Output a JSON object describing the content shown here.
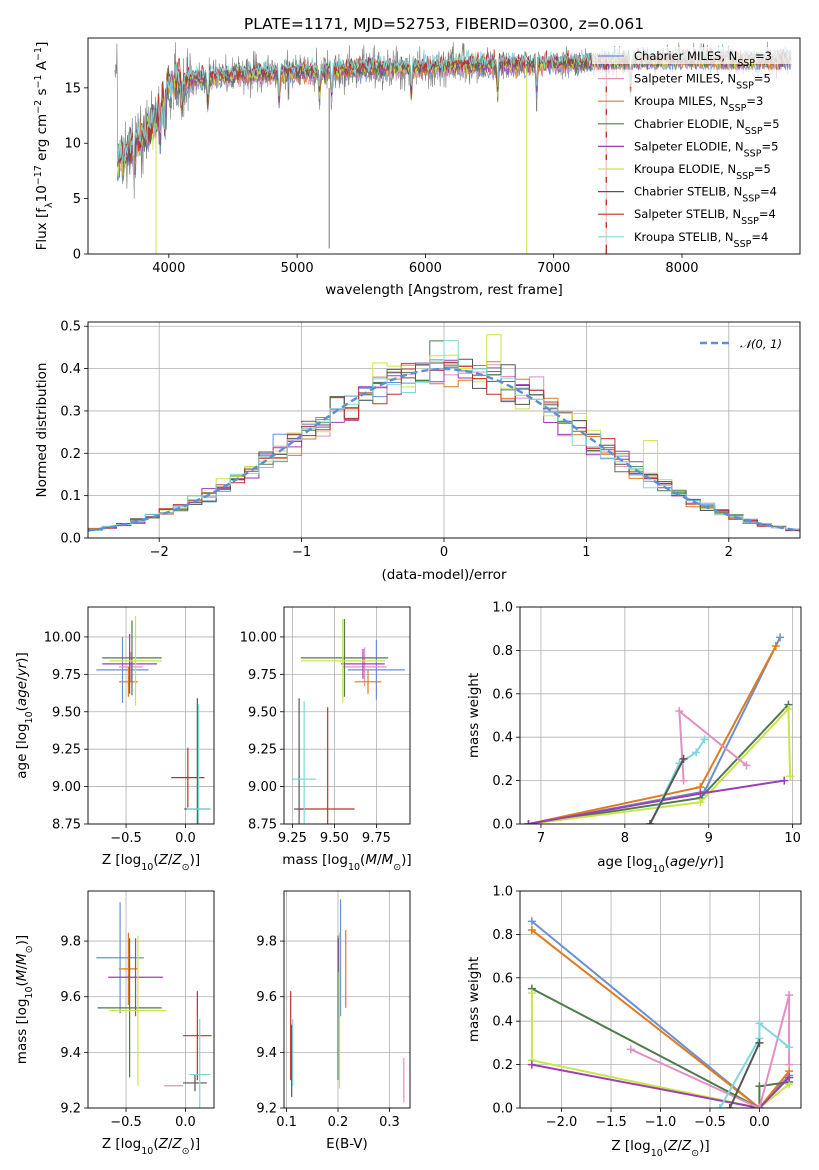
{
  "title": "PLATE=1171, MJD=52753, FIBERID=0300, z=0.061",
  "colors": {
    "chabrier_miles": "#6b8fd6",
    "salpeter_miles": "#e38fc0",
    "kroupa_miles": "#e07a1f",
    "chabrier_elodie": "#4f7a4f",
    "salpeter_elodie": "#9a3fb5",
    "kroupa_elodie": "#c8e64a",
    "chabrier_stelib": "#555555",
    "salpeter_stelib": "#c0302a",
    "kroupa_stelib": "#7fd8dc",
    "normal": "#5b8fd6"
  },
  "chart_data": [
    {
      "type": "line",
      "panel": "spectrum",
      "xlabel": "wavelength [Angstrom, rest frame]",
      "ylabel_parts": [
        "Flux [f",
        "λ",
        "10",
        "−17",
        " erg cm",
        "−2",
        " s",
        "−1",
        " A",
        "−1",
        "]"
      ],
      "xlim": [
        3370,
        8920
      ],
      "ylim": [
        0,
        19.5
      ],
      "xticks": [
        4000,
        5000,
        6000,
        7000,
        8000
      ],
      "yticks": [
        0,
        5,
        10,
        15
      ],
      "legend_position": "right",
      "legend": [
        {
          "key": "chabrier_miles",
          "name": "Chabrier MILES, N",
          "sub": "SSP",
          "val": "=3"
        },
        {
          "key": "salpeter_miles",
          "name": "Salpeter MILES, N",
          "sub": "SSP",
          "val": "=5"
        },
        {
          "key": "kroupa_miles",
          "name": "Kroupa MILES, N",
          "sub": "SSP",
          "val": "=3"
        },
        {
          "key": "chabrier_elodie",
          "name": "Chabrier ELODIE, N",
          "sub": "SSP",
          "val": "=5"
        },
        {
          "key": "salpeter_elodie",
          "name": "Salpeter ELODIE, N",
          "sub": "SSP",
          "val": "=5"
        },
        {
          "key": "kroupa_elodie",
          "name": "Kroupa ELODIE, N",
          "sub": "SSP",
          "val": "=5"
        },
        {
          "key": "chabrier_stelib",
          "name": "Chabrier STELIB, N",
          "sub": "SSP",
          "val": "=4"
        },
        {
          "key": "salpeter_stelib",
          "name": "Salpeter STELIB, N",
          "sub": "SSP",
          "val": "=4"
        },
        {
          "key": "kroupa_stelib",
          "name": "Kroupa STELIB, N",
          "sub": "SSP",
          "val": "=4"
        }
      ],
      "continuum": [
        [
          3600,
          8.5
        ],
        [
          3700,
          9.5
        ],
        [
          3800,
          10.5
        ],
        [
          3900,
          12
        ],
        [
          4000,
          15.2
        ],
        [
          4200,
          15.8
        ],
        [
          4500,
          16.1
        ],
        [
          5000,
          16.4
        ],
        [
          5500,
          16.7
        ],
        [
          6000,
          16.9
        ],
        [
          6500,
          17.1
        ],
        [
          7000,
          17.2
        ],
        [
          7500,
          17.4
        ],
        [
          8000,
          17.6
        ],
        [
          8500,
          17.4
        ],
        [
          8850,
          17.6
        ]
      ]
    },
    {
      "type": "line",
      "panel": "residual-histogram",
      "xlabel": "(data-model)/error",
      "ylabel": "Normed distribution",
      "xlim": [
        -2.5,
        2.5
      ],
      "ylim": [
        0,
        0.51
      ],
      "xticks": [
        -2,
        -1,
        0,
        1,
        2
      ],
      "yticks": [
        0.0,
        0.1,
        0.2,
        0.3,
        0.4,
        0.5
      ],
      "bin_width": 0.1,
      "legend_label": "𝒩(0, 1)",
      "legend_position": "top-right"
    },
    {
      "type": "scatter",
      "panel": "age-vs-Z",
      "xlabel": "Z [log10(Z/Z⊙)]",
      "ylabel": "age  [log10(age/yr)]",
      "xlim": [
        -0.82,
        0.24
      ],
      "ylim": [
        8.75,
        10.2
      ],
      "xticks": [
        -0.5,
        0.0
      ],
      "yticks": [
        8.75,
        9.0,
        9.25,
        9.5,
        9.75,
        10.0
      ],
      "points": [
        {
          "key": "chabrier_miles",
          "x": -0.53,
          "xerr": 0.22,
          "y": 9.78,
          "yerr": 0.22
        },
        {
          "key": "salpeter_miles",
          "x": -0.46,
          "xerr": 0.1,
          "y": 9.8,
          "yerr": 0.1
        },
        {
          "key": "kroupa_miles",
          "x": -0.48,
          "xerr": 0.08,
          "y": 9.7,
          "yerr": 0.1
        },
        {
          "key": "chabrier_elodie",
          "x": -0.45,
          "xerr": 0.25,
          "y": 9.86,
          "yerr": 0.25
        },
        {
          "key": "salpeter_elodie",
          "x": -0.47,
          "xerr": 0.23,
          "y": 9.82,
          "yerr": 0.2
        },
        {
          "key": "kroupa_elodie",
          "x": -0.42,
          "xerr": 0.22,
          "y": 9.84,
          "yerr": 0.3
        },
        {
          "key": "chabrier_stelib",
          "x": 0.1,
          "xerr": 0.11,
          "y": 8.85,
          "yerr": 0.74
        },
        {
          "key": "salpeter_stelib",
          "x": 0.02,
          "xerr": 0.14,
          "y": 9.06,
          "yerr": 0.2
        },
        {
          "key": "kroupa_stelib",
          "x": 0.11,
          "xerr": 0.1,
          "y": 8.85,
          "yerr": 0.7
        }
      ]
    },
    {
      "type": "scatter",
      "panel": "age-vs-mass",
      "xlabel": "mass [log10(M/M⊙)]",
      "ylabel": "",
      "xlim": [
        9.2,
        9.95
      ],
      "ylim": [
        8.75,
        10.2
      ],
      "xticks": [
        9.25,
        9.5,
        9.75
      ],
      "yticks": [
        8.75,
        9.0,
        9.25,
        9.5,
        9.75,
        10.0
      ],
      "points": [
        {
          "key": "chabrier_miles",
          "x": 9.75,
          "xerr": 0.17,
          "y": 9.78,
          "yerr": 0.2
        },
        {
          "key": "salpeter_miles",
          "x": 9.68,
          "xerr": 0.13,
          "y": 9.8,
          "yerr": 0.13
        },
        {
          "key": "kroupa_miles",
          "x": 9.7,
          "xerr": 0.08,
          "y": 9.7,
          "yerr": 0.08
        },
        {
          "key": "chabrier_elodie",
          "x": 9.56,
          "xerr": 0.26,
          "y": 9.86,
          "yerr": 0.26
        },
        {
          "key": "salpeter_elodie",
          "x": 9.67,
          "xerr": 0.13,
          "y": 9.82,
          "yerr": 0.1
        },
        {
          "key": "kroupa_elodie",
          "x": 9.55,
          "xerr": 0.25,
          "y": 9.84,
          "yerr": 0.28
        },
        {
          "key": "chabrier_stelib",
          "x": 9.29,
          "xerr": 0.03,
          "y": 8.85,
          "yerr": 0.74
        },
        {
          "key": "salpeter_stelib",
          "x": 9.46,
          "xerr": 0.16,
          "y": 8.85,
          "yerr": 0.68
        },
        {
          "key": "kroupa_stelib",
          "x": 9.32,
          "xerr": 0.07,
          "y": 9.05,
          "yerr": 0.52
        }
      ]
    },
    {
      "type": "line",
      "panel": "weight-vs-age",
      "xlabel": "age  [log10(age/yr)]",
      "ylabel": "mass weight",
      "xlim": [
        6.75,
        10.1
      ],
      "ylim": [
        0,
        1
      ],
      "xticks": [
        7,
        8,
        9,
        10
      ],
      "yticks": [
        0.0,
        0.2,
        0.4,
        0.6,
        0.8,
        1.0
      ],
      "series": [
        {
          "key": "chabrier_miles",
          "points": [
            [
              6.85,
              0.0
            ],
            [
              8.95,
              0.15
            ],
            [
              9.85,
              0.86
            ]
          ]
        },
        {
          "key": "kroupa_miles",
          "points": [
            [
              6.85,
              0.0
            ],
            [
              8.9,
              0.17
            ],
            [
              9.8,
              0.82
            ]
          ]
        },
        {
          "key": "chabrier_elodie",
          "points": [
            [
              6.85,
              0.0
            ],
            [
              8.9,
              0.12
            ],
            [
              9.95,
              0.55
            ]
          ]
        },
        {
          "key": "kroupa_elodie",
          "points": [
            [
              6.85,
              0.0
            ],
            [
              8.9,
              0.1
            ],
            [
              9.95,
              0.53
            ],
            [
              9.97,
              0.22
            ]
          ]
        },
        {
          "key": "salpeter_elodie",
          "points": [
            [
              6.85,
              0.0
            ],
            [
              8.9,
              0.14
            ],
            [
              9.9,
              0.2
            ]
          ]
        },
        {
          "key": "salpeter_miles",
          "points": [
            [
              8.7,
              0.2
            ],
            [
              8.65,
              0.52
            ],
            [
              9.45,
              0.27
            ]
          ]
        },
        {
          "key": "kroupa_stelib",
          "points": [
            [
              8.3,
              0.0
            ],
            [
              8.65,
              0.28
            ],
            [
              8.85,
              0.33
            ],
            [
              8.95,
              0.39
            ]
          ]
        },
        {
          "key": "chabrier_stelib",
          "points": [
            [
              8.3,
              0.0
            ],
            [
              8.7,
              0.3
            ]
          ]
        }
      ]
    },
    {
      "type": "scatter",
      "panel": "mass-vs-Z",
      "xlabel": "Z [log10(Z/Z⊙)]",
      "ylabel": "mass [log10(M/M⊙)]",
      "xlim": [
        -0.82,
        0.24
      ],
      "ylim": [
        9.2,
        9.98
      ],
      "xticks": [
        -0.5,
        0.0
      ],
      "yticks": [
        9.2,
        9.4,
        9.6,
        9.8
      ],
      "points": [
        {
          "key": "chabrier_miles",
          "x": -0.55,
          "xerr": 0.2,
          "y": 9.74,
          "yerr": 0.2
        },
        {
          "key": "kroupa_miles",
          "x": -0.48,
          "xerr": 0.08,
          "y": 9.7,
          "yerr": 0.13
        },
        {
          "key": "salpeter_miles",
          "x": -0.1,
          "xerr": 0.08,
          "y": 9.28,
          "yerr": 0.0
        },
        {
          "key": "chabrier_elodie",
          "x": -0.47,
          "xerr": 0.27,
          "y": 9.56,
          "yerr": 0.25
        },
        {
          "key": "salpeter_elodie",
          "x": -0.42,
          "xerr": 0.23,
          "y": 9.67,
          "yerr": 0.14
        },
        {
          "key": "kroupa_elodie",
          "x": -0.4,
          "xerr": 0.24,
          "y": 9.55,
          "yerr": 0.27
        },
        {
          "key": "chabrier_stelib",
          "x": 0.08,
          "xerr": 0.1,
          "y": 9.29,
          "yerr": 0.03
        },
        {
          "key": "salpeter_stelib",
          "x": 0.1,
          "xerr": 0.12,
          "y": 9.46,
          "yerr": 0.16
        },
        {
          "key": "kroupa_stelib",
          "x": 0.12,
          "xerr": 0.09,
          "y": 9.32,
          "yerr": 0.2
        }
      ]
    },
    {
      "type": "scatter",
      "panel": "mass-vs-EBV",
      "xlabel": "E(B-V)",
      "ylabel": "",
      "xlim": [
        0.095,
        0.34
      ],
      "ylim": [
        9.2,
        9.98
      ],
      "xticks": [
        0.1,
        0.2,
        0.3
      ],
      "yticks": [
        9.2,
        9.4,
        9.6,
        9.8
      ],
      "points": [
        {
          "key": "chabrier_miles",
          "x": 0.205,
          "xerr": 0,
          "y": 9.74,
          "yerr": 0.21
        },
        {
          "key": "kroupa_miles",
          "x": 0.215,
          "xerr": 0,
          "y": 9.7,
          "yerr": 0.14
        },
        {
          "key": "salpeter_miles",
          "x": 0.328,
          "xerr": 0,
          "y": 9.3,
          "yerr": 0.08
        },
        {
          "key": "chabrier_elodie",
          "x": 0.2,
          "xerr": 0,
          "y": 9.56,
          "yerr": 0.26
        },
        {
          "key": "salpeter_elodie",
          "x": 0.202,
          "xerr": 0,
          "y": 9.75,
          "yerr": 0.06
        },
        {
          "key": "kroupa_elodie",
          "x": 0.203,
          "xerr": 0,
          "y": 9.55,
          "yerr": 0.28
        },
        {
          "key": "chabrier_stelib",
          "x": 0.11,
          "xerr": 0,
          "y": 9.37,
          "yerr": 0.13
        },
        {
          "key": "salpeter_stelib",
          "x": 0.108,
          "xerr": 0,
          "y": 9.46,
          "yerr": 0.16
        },
        {
          "key": "kroupa_stelib",
          "x": 0.112,
          "xerr": 0,
          "y": 9.4,
          "yerr": 0.12
        }
      ]
    },
    {
      "type": "line",
      "panel": "weight-vs-Z",
      "xlabel": "Z [log10(Z/Z⊙)]",
      "ylabel": "mass weight",
      "xlim": [
        -2.42,
        0.42
      ],
      "ylim": [
        0,
        1
      ],
      "xticks": [
        -2.0,
        -1.5,
        -1.0,
        -0.5,
        0.0
      ],
      "yticks": [
        0.0,
        0.2,
        0.4,
        0.6,
        0.8,
        1.0
      ],
      "series": [
        {
          "key": "chabrier_miles",
          "points": [
            [
              -2.3,
              0.86
            ],
            [
              0.0,
              0.0
            ],
            [
              0.3,
              0.15
            ]
          ]
        },
        {
          "key": "kroupa_miles",
          "points": [
            [
              -2.3,
              0.82
            ],
            [
              0.0,
              0.0
            ],
            [
              0.3,
              0.17
            ]
          ]
        },
        {
          "key": "chabrier_elodie",
          "points": [
            [
              -2.3,
              0.55
            ],
            [
              0.0,
              0.0
            ],
            [
              0.0,
              0.1
            ],
            [
              0.3,
              0.12
            ]
          ]
        },
        {
          "key": "kroupa_elodie",
          "points": [
            [
              -2.3,
              0.53
            ],
            [
              -2.3,
              0.22
            ],
            [
              0.0,
              0.0
            ],
            [
              0.3,
              0.11
            ]
          ]
        },
        {
          "key": "salpeter_elodie",
          "points": [
            [
              -2.3,
              0.2
            ],
            [
              0.0,
              0.0
            ],
            [
              0.3,
              0.14
            ]
          ]
        },
        {
          "key": "salpeter_miles",
          "points": [
            [
              -1.3,
              0.27
            ],
            [
              0.0,
              0.0
            ],
            [
              0.3,
              0.52
            ],
            [
              0.3,
              0.2
            ]
          ]
        },
        {
          "key": "kroupa_stelib",
          "points": [
            [
              -0.4,
              0.0
            ],
            [
              0.0,
              0.32
            ],
            [
              0.0,
              0.39
            ],
            [
              0.3,
              0.28
            ]
          ]
        },
        {
          "key": "chabrier_stelib",
          "points": [
            [
              -0.3,
              0.0
            ],
            [
              0.0,
              0.3
            ]
          ]
        }
      ]
    }
  ]
}
